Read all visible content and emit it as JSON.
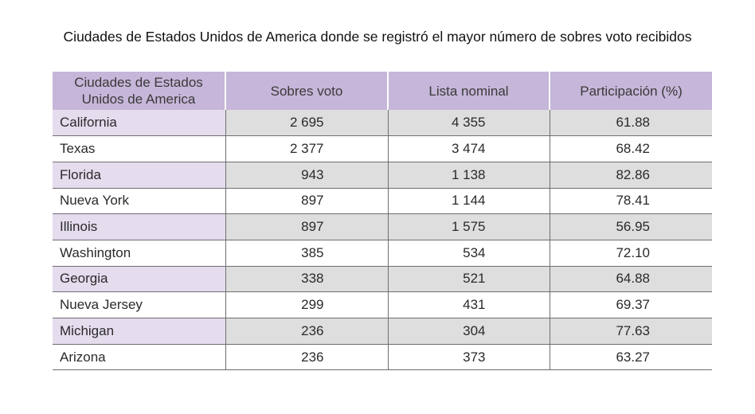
{
  "title": "Ciudades de Estados Unidos de America donde se registró el mayor número de sobres voto recibidos",
  "table": {
    "headers": [
      "Ciudades de Estados Unidos de America",
      "Sobres voto",
      "Lista nominal",
      "Participación (%)"
    ],
    "rows": [
      [
        "California",
        "2 695",
        "4 355",
        "61.88"
      ],
      [
        "Texas",
        "2 377",
        "3 474",
        "68.42"
      ],
      [
        "Florida",
        "943",
        "1 138",
        "82.86"
      ],
      [
        "Nueva York",
        "897",
        "1 144",
        "78.41"
      ],
      [
        "Illinois",
        "897",
        "1 575",
        "56.95"
      ],
      [
        "Washington",
        "385",
        "534",
        "72.10"
      ],
      [
        "Georgia",
        "338",
        "521",
        "64.88"
      ],
      [
        "Nueva Jersey",
        "299",
        "431",
        "69.37"
      ],
      [
        "Michigan",
        "236",
        "304",
        "77.63"
      ],
      [
        "Arizona",
        "236",
        "373",
        "63.27"
      ]
    ]
  },
  "colors": {
    "header_bg": "#c6b6d9",
    "city_band": "#e5dcee",
    "value_band": "#dedede"
  }
}
